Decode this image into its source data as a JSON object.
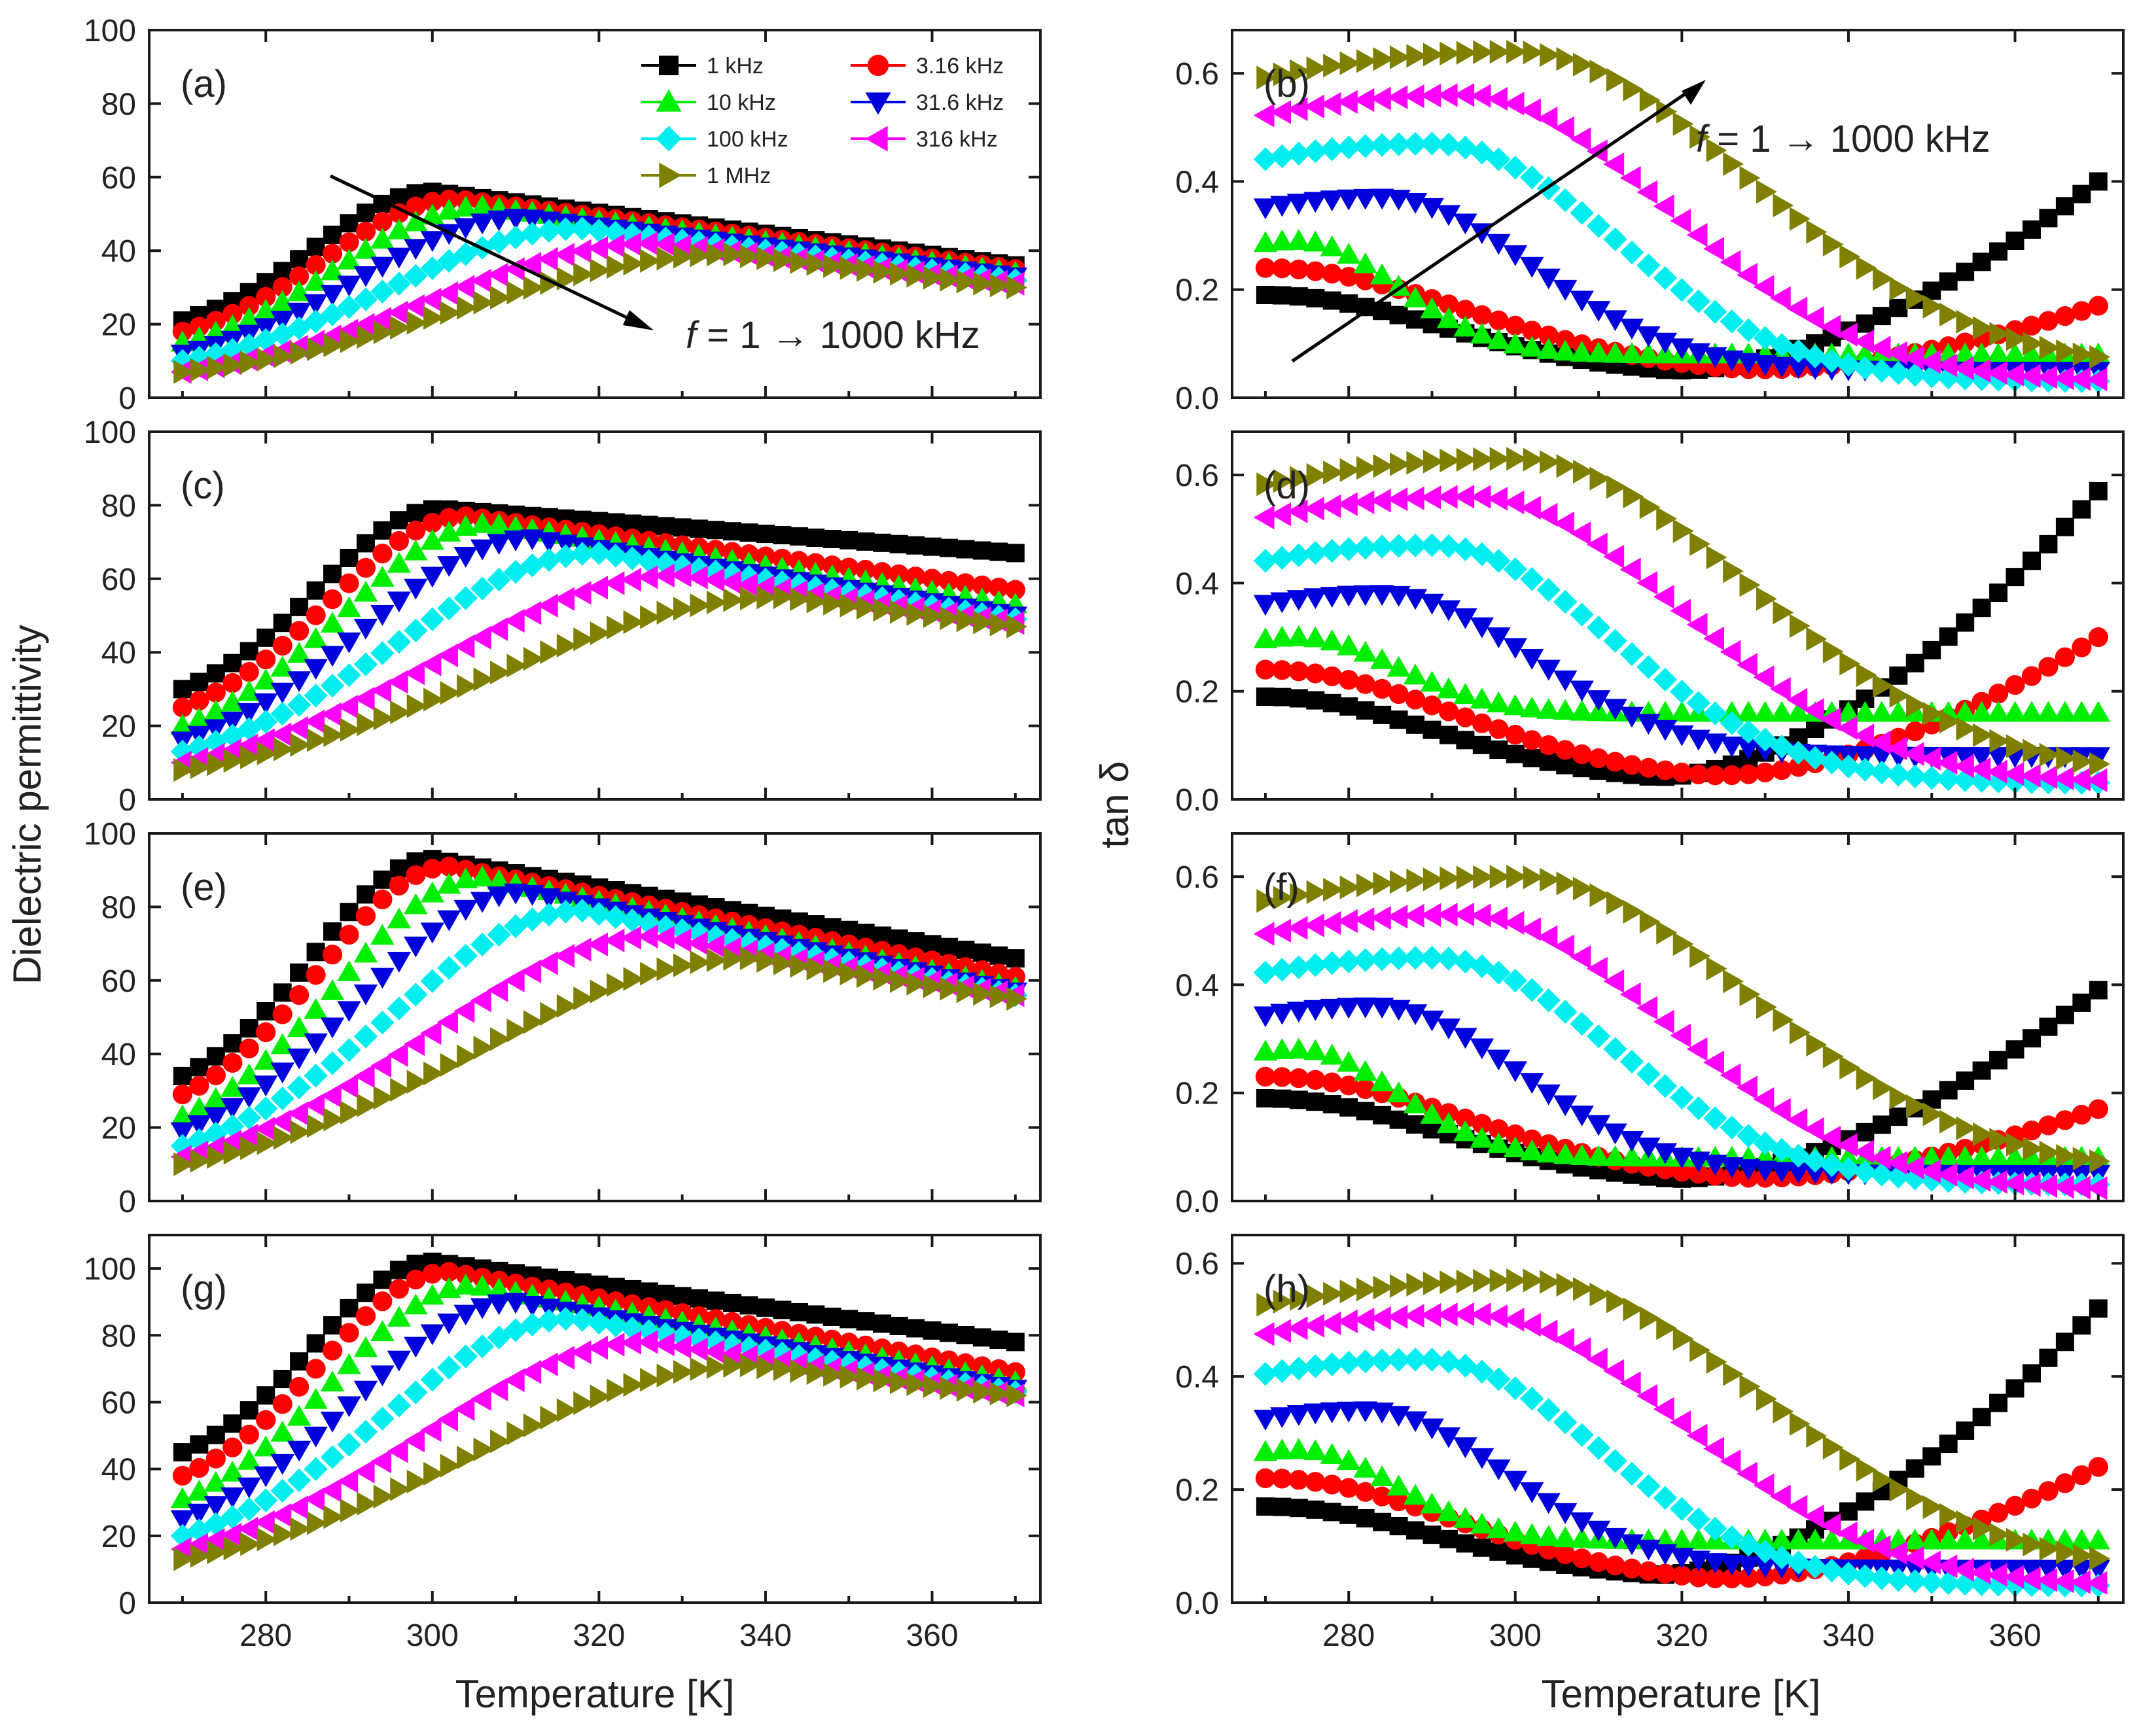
{
  "figure": {
    "ylabel_left": "Dielectric permittivity",
    "ylabel_right": "tan δ",
    "xlabel": "Temperature [K]",
    "colors": {
      "1 kHz": "#000000",
      "3.16 kHz": "#ff0000",
      "10 kHz": "#00ee00",
      "31.6 kHz": "#0000dd",
      "100 kHz": "#00eeee",
      "316 kHz": "#ff00ff",
      "1 MHz": "#808000"
    }
  },
  "legend": {
    "entries": [
      {
        "label": "1 kHz",
        "marker": "square"
      },
      {
        "label": "3.16 kHz",
        "marker": "circle"
      },
      {
        "label": "10 kHz",
        "marker": "triangle-up"
      },
      {
        "label": "31.6 kHz",
        "marker": "triangle-down"
      },
      {
        "label": "100 kHz",
        "marker": "diamond"
      },
      {
        "label": "316 kHz",
        "marker": "triangle-left"
      },
      {
        "label": "1 MHz",
        "marker": "triangle-right"
      }
    ]
  },
  "annotations": {
    "perm": {
      "prefix": "f",
      "text": " = 1 → 1000 kHz"
    },
    "loss": {
      "prefix": "f",
      "text": " = 1 → 1000 kHz"
    }
  },
  "chart_data": [
    {
      "type": "scatter",
      "panel": "(a)",
      "quantity": "permittivity",
      "xlim": [
        266,
        373
      ],
      "ylim": [
        0,
        100
      ],
      "xticks": [
        280,
        300,
        320,
        340,
        360
      ],
      "yticks": [
        0,
        20,
        40,
        60,
        80,
        100
      ],
      "x": [
        270,
        300,
        330,
        370
      ],
      "series": [
        {
          "name": "1 kHz",
          "peak_x": 300,
          "peak_y": 56,
          "start_y": 21,
          "end_y": 36
        },
        {
          "name": "3.16 kHz",
          "peak_x": 303,
          "peak_y": 54,
          "start_y": 18,
          "end_y": 35
        },
        {
          "name": "10 kHz",
          "peak_x": 306,
          "peak_y": 52,
          "start_y": 15,
          "end_y": 34
        },
        {
          "name": "31.6 kHz",
          "peak_x": 311,
          "peak_y": 49,
          "start_y": 12,
          "end_y": 33
        },
        {
          "name": "100 kHz",
          "peak_x": 318,
          "peak_y": 46,
          "start_y": 10,
          "end_y": 32
        },
        {
          "name": "316 kHz",
          "peak_x": 327,
          "peak_y": 42,
          "start_y": 7,
          "end_y": 31
        },
        {
          "name": "1 MHz",
          "peak_x": 336,
          "peak_y": 39,
          "start_y": 7,
          "end_y": 30
        }
      ]
    },
    {
      "type": "scatter",
      "panel": "(b)",
      "quantity": "tan δ",
      "xlim": [
        266,
        373
      ],
      "ylim": [
        0,
        0.68
      ],
      "xticks": [
        280,
        300,
        320,
        340,
        360
      ],
      "yticks": [
        0.0,
        0.2,
        0.4,
        0.6
      ],
      "x": [
        270,
        300,
        330,
        370
      ],
      "series": [
        {
          "name": "1 kHz",
          "start_y": 0.19,
          "min_x": 318,
          "min_y": 0.04,
          "end_y": 0.4
        },
        {
          "name": "3.16 kHz",
          "start_y": 0.24,
          "min_x": 325,
          "min_y": 0.04,
          "end_y": 0.17
        },
        {
          "name": "10 kHz",
          "peak_x": 274,
          "peak_y": 0.29,
          "end_y": 0.08
        },
        {
          "name": "31.6 kHz",
          "peak_x": 284,
          "peak_y": 0.37,
          "end_y": 0.05
        },
        {
          "name": "100 kHz",
          "peak_x": 290,
          "peak_y": 0.47,
          "end_y": 0.03
        },
        {
          "name": "316 kHz",
          "peak_x": 294,
          "peak_y": 0.56,
          "end_y": 0.03
        },
        {
          "name": "1 MHz",
          "peak_x": 300,
          "peak_y": 0.64,
          "end_y": 0.05
        }
      ]
    },
    {
      "type": "scatter",
      "panel": "(c)",
      "quantity": "permittivity",
      "xlim": [
        266,
        373
      ],
      "ylim": [
        0,
        100
      ],
      "xticks": [
        280,
        300,
        320,
        340,
        360
      ],
      "yticks": [
        0,
        20,
        40,
        60,
        80,
        100
      ],
      "x": [
        270,
        300,
        330,
        370
      ],
      "series": [
        {
          "name": "1 kHz",
          "peak_x": 301,
          "peak_y": 79,
          "start_y": 30,
          "end_y": 67
        },
        {
          "name": "3.16 kHz",
          "peak_x": 304,
          "peak_y": 77,
          "start_y": 25,
          "end_y": 57
        },
        {
          "name": "10 kHz",
          "peak_x": 307,
          "peak_y": 75,
          "start_y": 20,
          "end_y": 53
        },
        {
          "name": "31.6 kHz",
          "peak_x": 312,
          "peak_y": 71,
          "start_y": 16,
          "end_y": 50
        },
        {
          "name": "100 kHz",
          "peak_x": 320,
          "peak_y": 67,
          "start_y": 13,
          "end_y": 49
        },
        {
          "name": "316 kHz",
          "peak_x": 330,
          "peak_y": 61,
          "start_y": 10,
          "end_y": 48
        },
        {
          "name": "1 MHz",
          "peak_x": 342,
          "peak_y": 55,
          "start_y": 8,
          "end_y": 47
        }
      ]
    },
    {
      "type": "scatter",
      "panel": "(d)",
      "quantity": "tan δ",
      "xlim": [
        266,
        373
      ],
      "ylim": [
        0,
        0.68
      ],
      "xticks": [
        280,
        300,
        320,
        340,
        360
      ],
      "yticks": [
        0.0,
        0.2,
        0.4,
        0.6
      ],
      "x": [
        270,
        300,
        330,
        370
      ],
      "series": [
        {
          "name": "1 kHz",
          "start_y": 0.19,
          "min_x": 316,
          "min_y": 0.03,
          "end_y": 0.57
        },
        {
          "name": "3.16 kHz",
          "start_y": 0.24,
          "min_x": 322,
          "min_y": 0.03,
          "end_y": 0.3
        },
        {
          "name": "10 kHz",
          "peak_x": 274,
          "peak_y": 0.3,
          "end_y": 0.16
        },
        {
          "name": "31.6 kHz",
          "peak_x": 284,
          "peak_y": 0.38,
          "end_y": 0.08
        },
        {
          "name": "100 kHz",
          "peak_x": 290,
          "peak_y": 0.47,
          "end_y": 0.03
        },
        {
          "name": "316 kHz",
          "peak_x": 295,
          "peak_y": 0.56,
          "end_y": 0.03
        },
        {
          "name": "1 MHz",
          "peak_x": 300,
          "peak_y": 0.63,
          "end_y": 0.04
        }
      ]
    },
    {
      "type": "scatter",
      "panel": "(e)",
      "quantity": "permittivity",
      "xlim": [
        266,
        373
      ],
      "ylim": [
        0,
        100
      ],
      "xticks": [
        280,
        300,
        320,
        340,
        360
      ],
      "yticks": [
        0,
        20,
        40,
        60,
        80,
        100
      ],
      "x": [
        270,
        300,
        330,
        370
      ],
      "series": [
        {
          "name": "1 kHz",
          "peak_x": 300,
          "peak_y": 93,
          "start_y": 34,
          "end_y": 66
        },
        {
          "name": "3.16 kHz",
          "peak_x": 302,
          "peak_y": 91,
          "start_y": 29,
          "end_y": 61
        },
        {
          "name": "10 kHz",
          "peak_x": 306,
          "peak_y": 88,
          "start_y": 23,
          "end_y": 58
        },
        {
          "name": "31.6 kHz",
          "peak_x": 311,
          "peak_y": 84,
          "start_y": 19,
          "end_y": 57
        },
        {
          "name": "100 kHz",
          "peak_x": 318,
          "peak_y": 79,
          "start_y": 15,
          "end_y": 56
        },
        {
          "name": "316 kHz",
          "peak_x": 327,
          "peak_y": 72,
          "start_y": 12,
          "end_y": 56
        },
        {
          "name": "1 MHz",
          "peak_x": 338,
          "peak_y": 66,
          "start_y": 10,
          "end_y": 55
        }
      ]
    },
    {
      "type": "scatter",
      "panel": "(f)",
      "quantity": "tan δ",
      "xlim": [
        266,
        373
      ],
      "ylim": [
        0,
        0.68
      ],
      "xticks": [
        280,
        300,
        320,
        340,
        360
      ],
      "yticks": [
        0.0,
        0.2,
        0.4,
        0.6
      ],
      "x": [
        270,
        300,
        330,
        370
      ],
      "series": [
        {
          "name": "1 kHz",
          "start_y": 0.19,
          "min_x": 318,
          "min_y": 0.03,
          "end_y": 0.39
        },
        {
          "name": "3.16 kHz",
          "start_y": 0.23,
          "min_x": 325,
          "min_y": 0.03,
          "end_y": 0.17
        },
        {
          "name": "10 kHz",
          "peak_x": 274,
          "peak_y": 0.28,
          "end_y": 0.08
        },
        {
          "name": "31.6 kHz",
          "peak_x": 283,
          "peak_y": 0.36,
          "end_y": 0.05
        },
        {
          "name": "100 kHz",
          "peak_x": 290,
          "peak_y": 0.45,
          "end_y": 0.03
        },
        {
          "name": "316 kHz",
          "peak_x": 294,
          "peak_y": 0.53,
          "end_y": 0.02
        },
        {
          "name": "1 MHz",
          "peak_x": 300,
          "peak_y": 0.6,
          "end_y": 0.05
        }
      ]
    },
    {
      "type": "scatter",
      "panel": "(g)",
      "quantity": "permittivity",
      "xlim": [
        266,
        373
      ],
      "ylim": [
        0,
        110
      ],
      "xticks": [
        280,
        300,
        320,
        340,
        360
      ],
      "yticks": [
        0,
        20,
        40,
        60,
        80,
        100
      ],
      "x": [
        270,
        300,
        330,
        370
      ],
      "series": [
        {
          "name": "1 kHz",
          "peak_x": 300,
          "peak_y": 102,
          "start_y": 45,
          "end_y": 78
        },
        {
          "name": "3.16 kHz",
          "peak_x": 302,
          "peak_y": 99,
          "start_y": 38,
          "end_y": 69
        },
        {
          "name": "10 kHz",
          "peak_x": 305,
          "peak_y": 95,
          "start_y": 31,
          "end_y": 66
        },
        {
          "name": "31.6 kHz",
          "peak_x": 310,
          "peak_y": 90,
          "start_y": 25,
          "end_y": 64
        },
        {
          "name": "100 kHz",
          "peak_x": 317,
          "peak_y": 85,
          "start_y": 20,
          "end_y": 63
        },
        {
          "name": "316 kHz",
          "peak_x": 326,
          "peak_y": 78,
          "start_y": 16,
          "end_y": 62
        },
        {
          "name": "1 MHz",
          "peak_x": 338,
          "peak_y": 71,
          "start_y": 13,
          "end_y": 62
        }
      ]
    },
    {
      "type": "scatter",
      "panel": "(h)",
      "quantity": "tan δ",
      "xlim": [
        266,
        373
      ],
      "ylim": [
        0,
        0.65
      ],
      "xticks": [
        280,
        300,
        320,
        340,
        360
      ],
      "yticks": [
        0.0,
        0.2,
        0.4,
        0.6
      ],
      "x": [
        270,
        300,
        330,
        370
      ],
      "series": [
        {
          "name": "1 kHz",
          "start_y": 0.17,
          "min_x": 316,
          "min_y": 0.04,
          "end_y": 0.52
        },
        {
          "name": "3.16 kHz",
          "start_y": 0.22,
          "min_x": 322,
          "min_y": 0.03,
          "end_y": 0.24
        },
        {
          "name": "10 kHz",
          "peak_x": 274,
          "peak_y": 0.27,
          "end_y": 0.11
        },
        {
          "name": "31.6 kHz",
          "peak_x": 282,
          "peak_y": 0.34,
          "end_y": 0.06
        },
        {
          "name": "100 kHz",
          "peak_x": 289,
          "peak_y": 0.43,
          "end_y": 0.03
        },
        {
          "name": "316 kHz",
          "peak_x": 295,
          "peak_y": 0.51,
          "end_y": 0.03
        },
        {
          "name": "1 MHz",
          "peak_x": 301,
          "peak_y": 0.57,
          "end_y": 0.05
        }
      ]
    }
  ]
}
